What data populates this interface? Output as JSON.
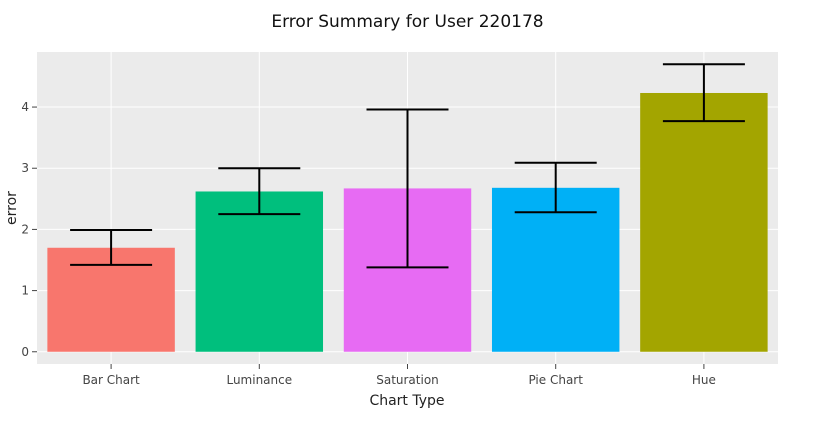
{
  "chart_data": {
    "type": "bar",
    "title": "Error Summary for User 220178",
    "xlabel": "Chart Type",
    "ylabel": "error",
    "categories": [
      "Bar Chart",
      "Luminance",
      "Saturation",
      "Pie Chart",
      "Hue"
    ],
    "values": [
      1.7,
      2.62,
      2.67,
      2.68,
      4.23
    ],
    "error_low": [
      1.42,
      2.25,
      1.38,
      2.28,
      3.77
    ],
    "error_high": [
      1.99,
      3.0,
      3.96,
      3.09,
      4.7
    ],
    "colors": [
      "#F8766D",
      "#00BF7D",
      "#E76BF3",
      "#00B0F6",
      "#A3A500"
    ],
    "yticks": [
      0,
      1,
      2,
      3,
      4
    ],
    "ylim": [
      -0.2,
      4.9
    ],
    "grid": true,
    "legend": "none"
  }
}
